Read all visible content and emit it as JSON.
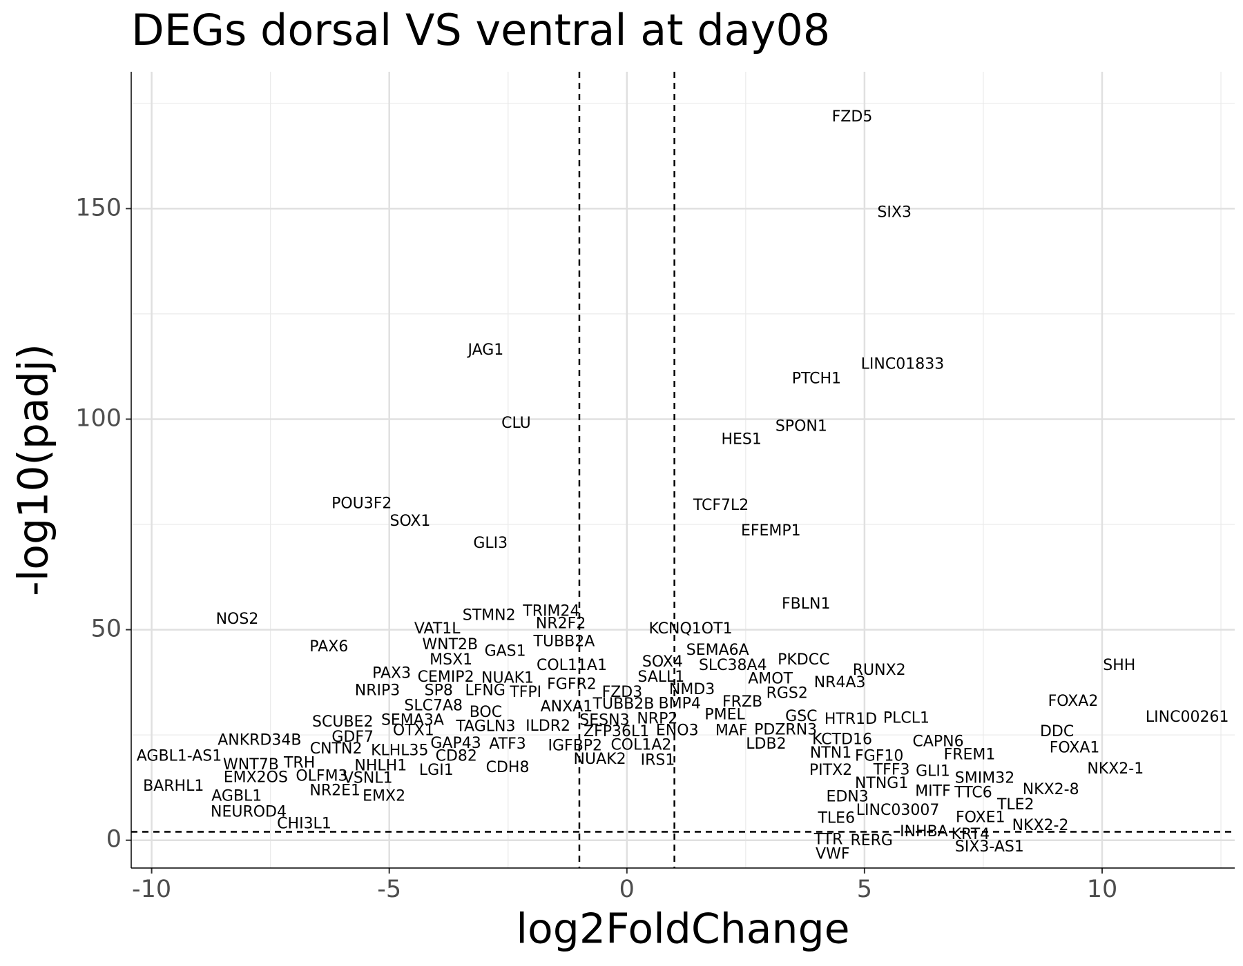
{
  "chart_data": {
    "type": "scatter",
    "title": "DEGs dorsal VS ventral at day08",
    "x_label": "log2FoldChange",
    "y_label": "-log10(padj)",
    "labels": [
      "FZD5",
      "SIX3",
      "JAG1",
      "LINC01833",
      "PTCH1",
      "CLU",
      "SPON1",
      "HES1",
      "POU3F2",
      "TCF7L2",
      "SOX1",
      "EFEMP1",
      "GLI3",
      "FBLN1",
      "NOS2",
      "TRIM24",
      "STMN2",
      "NR2F2",
      "VAT1L",
      "KCNQ1OT1",
      "PAX6",
      "WNT2B",
      "TUBB2A",
      "GAS1",
      "SEMA6A",
      "MSX1",
      "PKDCC",
      "SHH",
      "COL11A1",
      "SOX4",
      "SLC38A4",
      "RUNX2",
      "PAX3",
      "CEMIP2",
      "NUAK1",
      "SALL1",
      "AMOT",
      "FGFR2",
      "NR4A3",
      "NRIP3",
      "SP8",
      "LFNG",
      "TFPI",
      "NMD3",
      "FZD3",
      "RGS2",
      "FOXA2",
      "FRZB",
      "SLC7A8",
      "ANXA1",
      "TUBB2B",
      "BMP4",
      "BOC",
      "PMEL",
      "GSC",
      "LINC00261",
      "HTR1D",
      "PLCL1",
      "SCUBE2",
      "SEMA3A",
      "SESN3",
      "NRP2",
      "ILDR2",
      "TAGLN3",
      "OTX1",
      "ZFP36L1",
      "ENO3",
      "MAF",
      "PDZRN3",
      "DDC",
      "GDF7",
      "KCTD16",
      "ANKRD34B",
      "GAP43",
      "ATF3",
      "IGFBP2",
      "COL1A2",
      "CAPN6",
      "LDB2",
      "CNTN2",
      "KLHL35",
      "FOXA1",
      "CD82",
      "NTN1",
      "AGBL1-AS1",
      "FREM1",
      "FGF10",
      "NUAK2",
      "IRS1",
      "WNT7B",
      "TRH",
      "NHLH1",
      "CDH8",
      "LGI1",
      "PITX2",
      "TFF3",
      "GLI1",
      "NKX2-1",
      "EMX2OS",
      "OLFM3",
      "VSNL1",
      "SMIM32",
      "BARHL1",
      "NTNG1",
      "NKX2-8",
      "MITF",
      "TTC6",
      "NR2E1",
      "AGBL1",
      "EMX2",
      "EDN3",
      "TLE2",
      "NEUROD4",
      "LINC03007",
      "TLE6",
      "FOXE1",
      "NKX2-2",
      "CHI3L1",
      "INHBA",
      "KRT4",
      "TTR",
      "RERG",
      "SIX3-AS1",
      "VWF"
    ],
    "x": [
      4.74,
      5.63,
      -2.97,
      5.8,
      3.99,
      -2.33,
      3.67,
      2.41,
      -5.58,
      1.98,
      -4.56,
      3.03,
      -2.87,
      3.77,
      -8.2,
      -1.59,
      -2.9,
      -1.39,
      -3.99,
      1.34,
      -6.27,
      -3.72,
      -1.32,
      -2.56,
      1.91,
      -3.7,
      3.72,
      10.36,
      -1.16,
      0.75,
      2.23,
      5.31,
      -4.95,
      -3.81,
      -2.51,
      0.72,
      3.02,
      -1.16,
      4.48,
      -5.25,
      -3.96,
      -2.98,
      -2.13,
      1.37,
      -0.1,
      3.37,
      9.39,
      2.43,
      -4.07,
      -1.27,
      -0.07,
      1.11,
      -2.97,
      2.06,
      3.67,
      11.79,
      4.71,
      5.88,
      -5.98,
      -4.51,
      -0.47,
      0.64,
      -1.66,
      -2.97,
      -4.49,
      -0.22,
      1.06,
      2.2,
      3.34,
      9.05,
      -5.77,
      4.53,
      -7.73,
      -3.6,
      -2.51,
      -1.09,
      0.3,
      6.55,
      2.93,
      -6.12,
      -4.78,
      9.42,
      -3.59,
      4.29,
      -9.42,
      7.21,
      5.31,
      -0.57,
      0.65,
      -7.91,
      -6.89,
      -5.18,
      -2.51,
      -4.01,
      4.29,
      5.57,
      6.44,
      10.28,
      -7.81,
      -6.42,
      -5.45,
      7.53,
      -9.54,
      5.36,
      8.92,
      6.44,
      7.29,
      -6.14,
      -8.21,
      -5.11,
      4.64,
      8.18,
      -7.96,
      5.7,
      4.41,
      7.44,
      8.7,
      -6.79,
      6.25,
      7.23,
      4.24,
      5.15,
      7.63,
      4.33
    ],
    "values": [
      171.7,
      149.0,
      116.3,
      112.9,
      109.5,
      98.9,
      98.2,
      95.1,
      79.8,
      79.4,
      75.7,
      73.4,
      70.4,
      56.0,
      52.4,
      54.3,
      53.3,
      51.3,
      50.1,
      50.1,
      45.8,
      46.3,
      47.1,
      44.8,
      45.0,
      42.7,
      42.7,
      41.4,
      41.4,
      42.2,
      41.4,
      40.3,
      39.5,
      38.6,
      38.4,
      38.6,
      38.2,
      36.9,
      37.3,
      35.4,
      35.4,
      35.4,
      35.0,
      35.7,
      35.0,
      34.8,
      32.9,
      32.7,
      31.8,
      31.6,
      32.2,
      32.3,
      30.3,
      29.7,
      29.3,
      29.1,
      28.6,
      28.9,
      28.0,
      28.4,
      28.4,
      28.7,
      27.0,
      26.9,
      25.9,
      25.7,
      25.9,
      25.9,
      26.1,
      25.7,
      24.4,
      23.8,
      23.6,
      22.9,
      22.7,
      22.3,
      22.5,
      23.3,
      22.7,
      21.6,
      21.2,
      21.8,
      19.9,
      20.6,
      19.9,
      20.2,
      19.9,
      19.1,
      18.9,
      17.8,
      18.2,
      17.6,
      17.2,
      16.5,
      16.5,
      16.6,
      16.3,
      16.8,
      14.8,
      15.1,
      14.6,
      14.6,
      12.7,
      13.4,
      11.9,
      11.5,
      11.2,
      11.7,
      10.4,
      10.4,
      10.2,
      8.3,
      6.6,
      7.0,
      5.1,
      5.3,
      3.4,
      3.8,
      1.9,
      1.3,
      0.0,
      -0.2,
      -1.7,
      -3.4
    ],
    "xlim": [
      -10.43,
      12.79
    ],
    "ylim": [
      -6.6,
      182.5
    ],
    "xticks": [
      -10,
      -5,
      0,
      5,
      10
    ],
    "yticks": [
      0,
      50,
      100,
      150
    ],
    "minor_xticks": [
      -7.5,
      -2.5,
      2.5,
      7.5,
      12.5
    ],
    "minor_yticks": [
      25,
      75,
      125,
      175
    ],
    "vlines": [
      -1,
      1
    ],
    "hline": 2,
    "grid": true
  }
}
